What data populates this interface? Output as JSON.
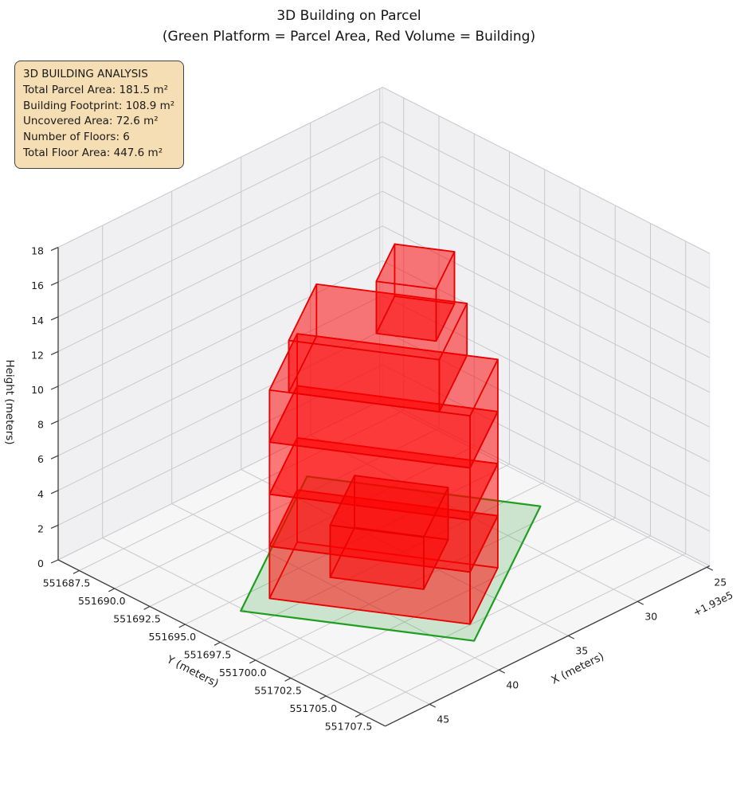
{
  "title": {
    "line1": "3D Building on Parcel",
    "line2": "(Green Platform = Parcel Area, Red Volume = Building)"
  },
  "annotation": {
    "heading": "3D BUILDING ANALYSIS",
    "lines": [
      "Total Parcel Area: 181.5 m²",
      "Building Footprint: 108.9 m²",
      "Uncovered Area: 72.6 m²",
      "Number of Floors: 6",
      "Total Floor Area: 447.6 m²"
    ]
  },
  "chart_data": {
    "type": "3d-building-plot",
    "legend_meaning": {
      "green_platform": "Parcel Area",
      "red_volume": "Building"
    },
    "stats": {
      "total_parcel_area_m2": 181.5,
      "building_footprint_m2": 108.9,
      "uncovered_area_m2": 72.6,
      "number_of_floors": 6,
      "total_floor_area_m2": 447.6,
      "floor_height_m": 3,
      "building_height_m": 18
    },
    "axes": {
      "x": {
        "label": "X (meters)",
        "lim": [
          24.8,
          48.2
        ],
        "inverted": true,
        "ticks": [
          45,
          40,
          35,
          30,
          25
        ],
        "tick_labels": [
          "45",
          "40",
          "35",
          "30",
          "25"
        ],
        "offset_text": "+1.93e5"
      },
      "y": {
        "label": "Y (meters)",
        "lim": [
          551686.0,
          551709.2
        ],
        "ticks": [
          551687.5,
          551690.0,
          551692.5,
          551695.0,
          551697.5,
          551700.0,
          551702.5,
          551705.0,
          551707.5
        ],
        "tick_labels": [
          "551687.5",
          "551690.0",
          "551692.5",
          "551695.0",
          "551697.5",
          "551700.0",
          "551702.5",
          "551705.0",
          "551707.5"
        ]
      },
      "z": {
        "label": "Height (meters)",
        "lim": [
          0,
          18
        ],
        "ticks": [
          0,
          2,
          4,
          6,
          8,
          10,
          12,
          14,
          16,
          18
        ],
        "tick_labels": [
          "0",
          "2",
          "4",
          "6",
          "8",
          "10",
          "12",
          "14",
          "16",
          "18"
        ]
      }
    },
    "parcel": {
      "corner_xy": [
        45.2,
        551696.0
      ],
      "side_dir_u": [
        -0.859,
        -0.511
      ],
      "side_dir_w": [
        -0.528,
        0.849
      ],
      "length_u_m": 14.1,
      "length_w_m": 12.1,
      "z": 0,
      "edge_color": "#1f9e1f",
      "fill_color": "rgba(42,156,42,0.20)"
    },
    "building": {
      "edge_color": "rgba(232,0,0,0.92)",
      "fill_color": "rgba(255,0,0,0.30)",
      "boxes": [
        {
          "name": "floor-1",
          "s": [
            1.6,
            7.5
          ],
          "t": [
            1.1,
            11.5
          ],
          "z": [
            0,
            3
          ],
          "order": 1
        },
        {
          "name": "floor-2",
          "s": [
            1.6,
            7.5
          ],
          "t": [
            1.1,
            11.5
          ],
          "z": [
            3,
            6
          ],
          "order": 2
        },
        {
          "name": "floor-3",
          "s": [
            1.6,
            7.5
          ],
          "t": [
            1.1,
            11.5
          ],
          "z": [
            6,
            9
          ],
          "order": 3
        },
        {
          "name": "floor-4",
          "s": [
            1.6,
            7.5
          ],
          "t": [
            1.1,
            11.5
          ],
          "z": [
            9,
            12
          ],
          "order": 4
        },
        {
          "name": "floor-5",
          "s": [
            1.6,
            7.5
          ],
          "t": [
            2.1,
            9.9
          ],
          "z": [
            12,
            15
          ],
          "order": 5
        },
        {
          "name": "floor-6",
          "s": [
            3.4,
            7.3
          ],
          "t": [
            6.2,
            9.3
          ],
          "z": [
            15,
            18
          ],
          "order": 6
        },
        {
          "name": "annex",
          "s": [
            4.45,
            9.65
          ],
          "t": [
            3.55,
            8.4
          ],
          "z": [
            0,
            3
          ],
          "order": 7
        }
      ]
    }
  }
}
